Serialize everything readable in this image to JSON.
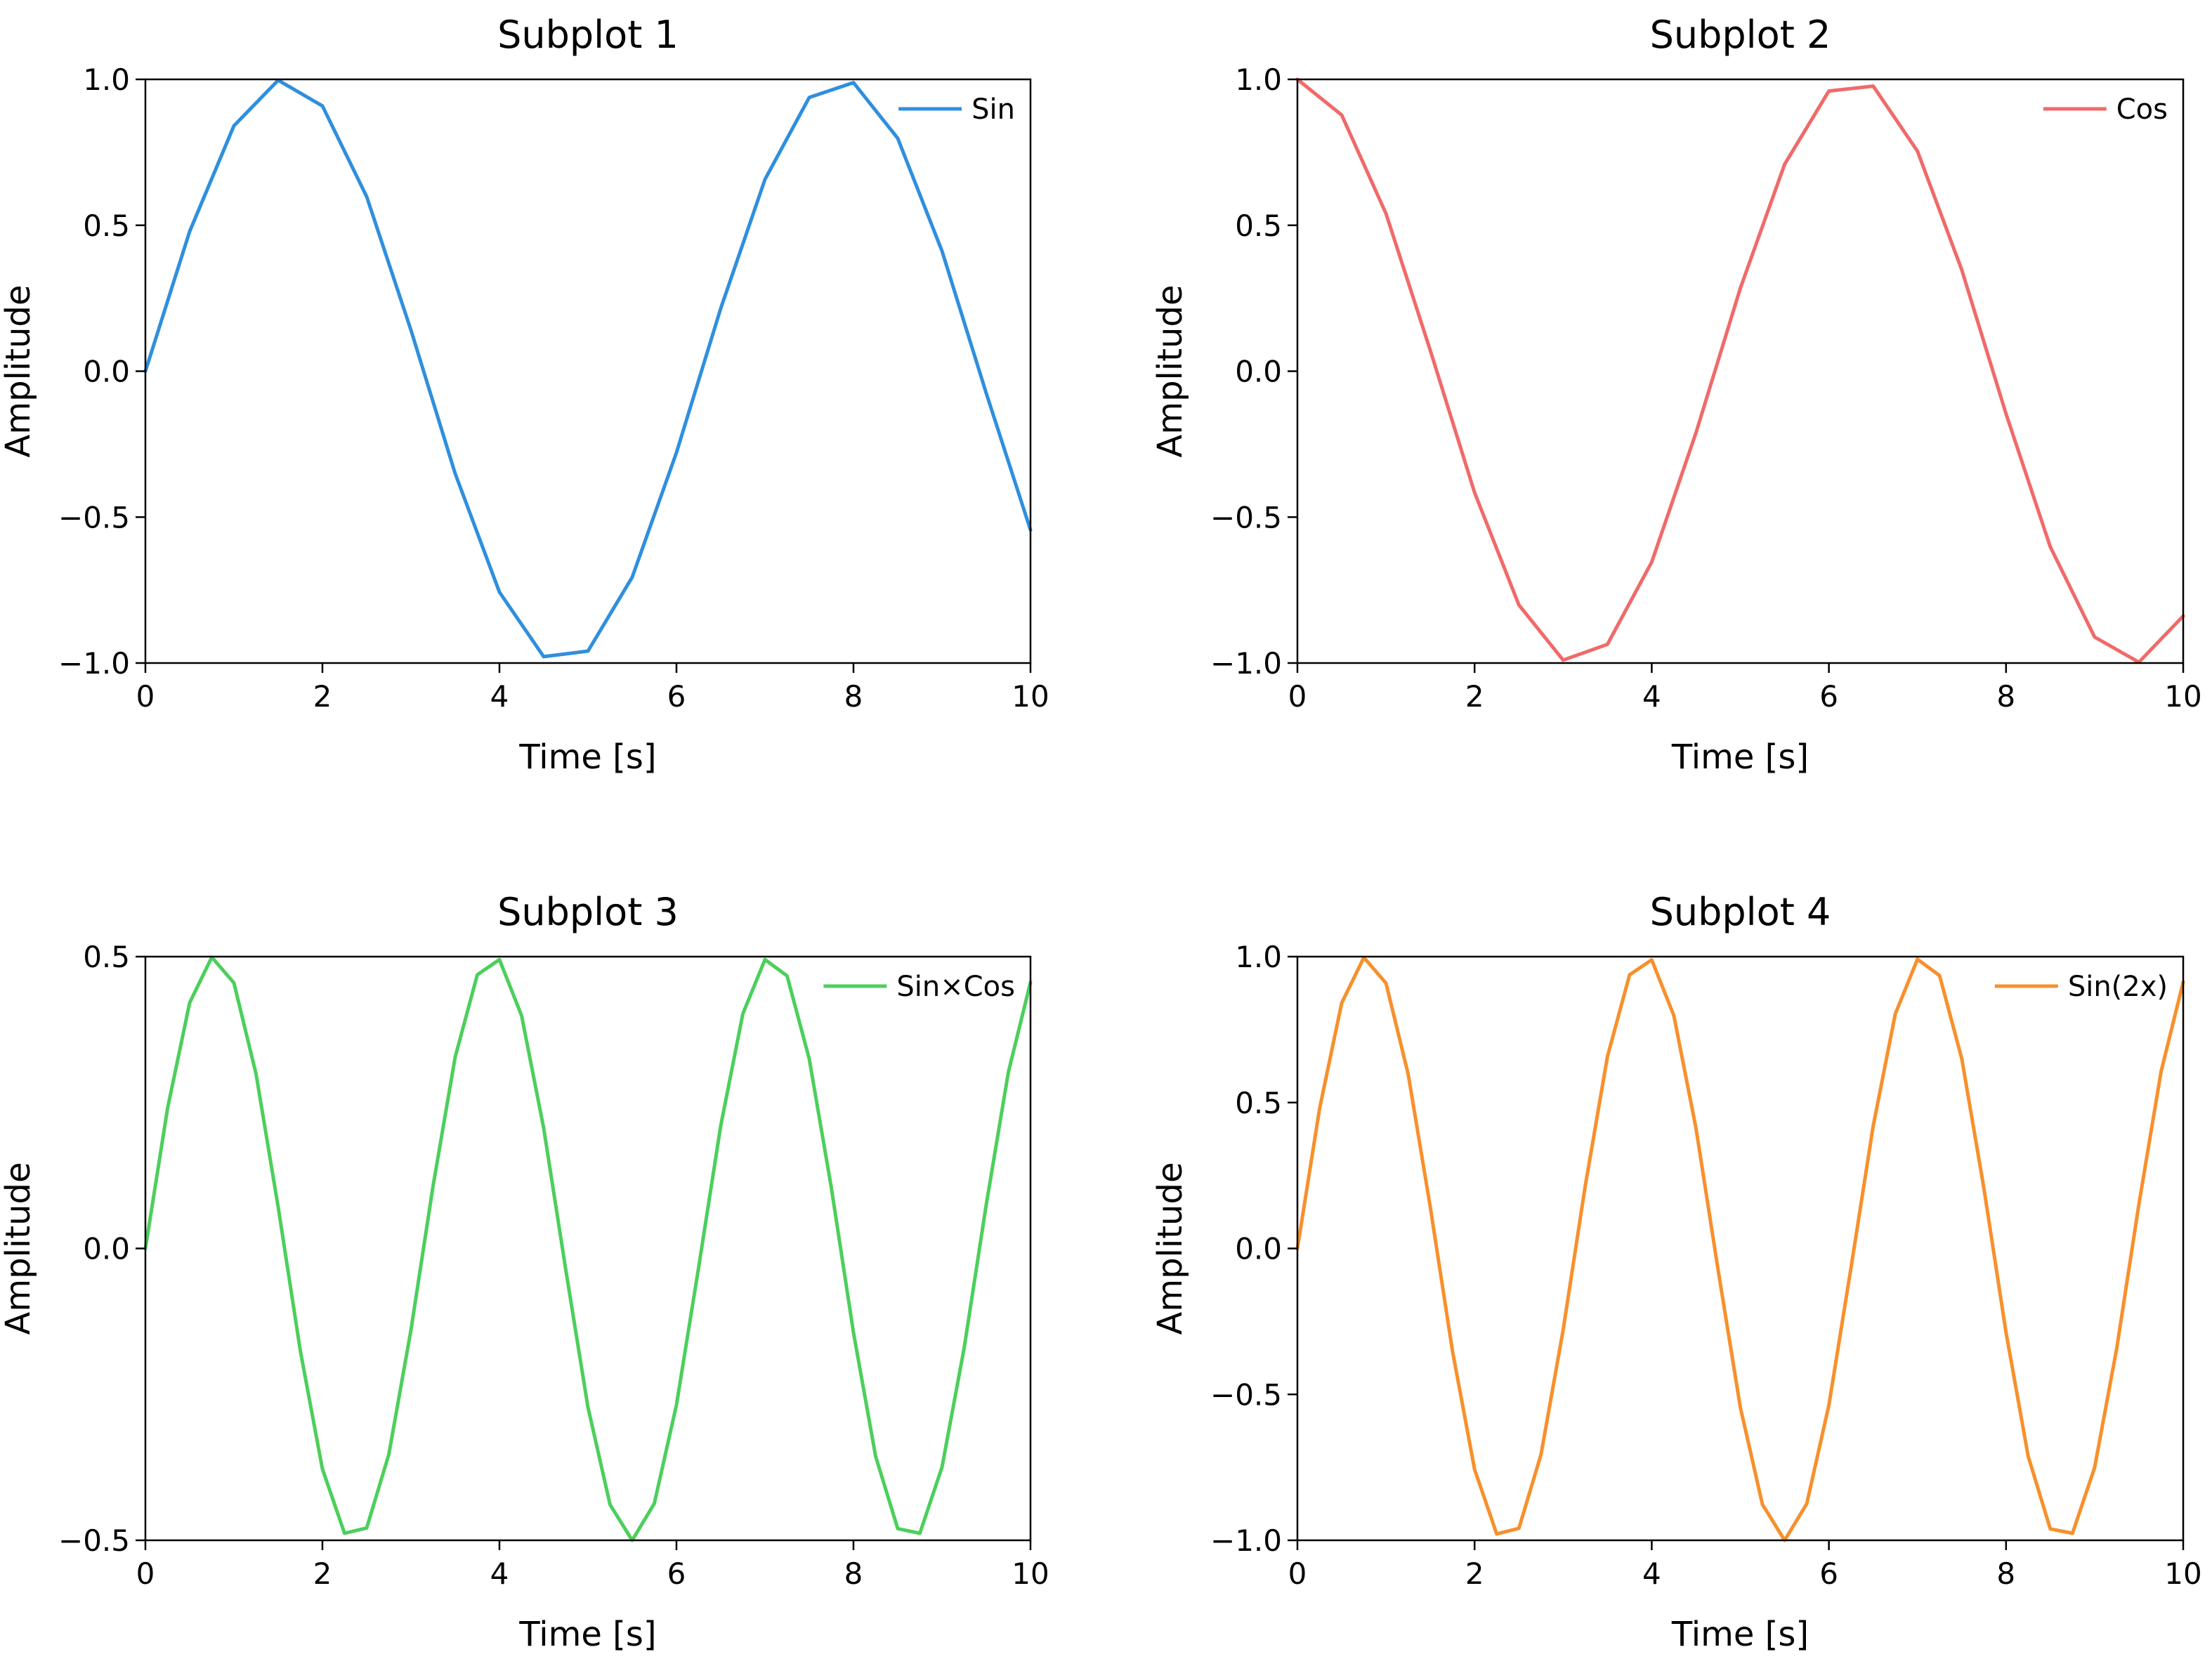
{
  "chart_data": [
    {
      "type": "line",
      "title": "Subplot 1",
      "xlabel": "Time [s]",
      "ylabel": "Amplitude",
      "xlim": [
        0,
        10
      ],
      "ylim": [
        -1.0,
        1.0
      ],
      "xticks": [
        0,
        2,
        4,
        6,
        8,
        10
      ],
      "xtick_labels": [
        "0",
        "2",
        "4",
        "6",
        "8",
        "10"
      ],
      "yticks": [
        -1.0,
        -0.5,
        0.0,
        0.5,
        1.0
      ],
      "ytick_labels": [
        "−1.0",
        "−0.5",
        "0.0",
        "0.5",
        "1.0"
      ],
      "grid": false,
      "legend_position": "top-right",
      "series": [
        {
          "name": "Sin",
          "color": "#2f8fdd",
          "x": [
            0,
            0.5,
            1,
            1.5,
            2,
            2.5,
            3,
            3.5,
            4,
            4.5,
            5,
            5.5,
            6,
            6.5,
            7,
            7.5,
            8,
            8.5,
            9,
            9.5,
            10
          ],
          "y": [
            0.0,
            0.479,
            0.841,
            0.997,
            0.909,
            0.598,
            0.141,
            -0.351,
            -0.757,
            -0.978,
            -0.959,
            -0.706,
            -0.279,
            0.215,
            0.657,
            0.938,
            0.989,
            0.798,
            0.412,
            -0.075,
            -0.544
          ]
        }
      ]
    },
    {
      "type": "line",
      "title": "Subplot 2",
      "xlabel": "Time [s]",
      "ylabel": "Amplitude",
      "xlim": [
        0,
        10
      ],
      "ylim": [
        -1.0,
        1.0
      ],
      "xticks": [
        0,
        2,
        4,
        6,
        8,
        10
      ],
      "xtick_labels": [
        "0",
        "2",
        "4",
        "6",
        "8",
        "10"
      ],
      "yticks": [
        -1.0,
        -0.5,
        0.0,
        0.5,
        1.0
      ],
      "ytick_labels": [
        "−1.0",
        "−0.5",
        "0.0",
        "0.5",
        "1.0"
      ],
      "grid": false,
      "legend_position": "top-right",
      "series": [
        {
          "name": "Cos",
          "color": "#f06a6a",
          "x": [
            0,
            0.5,
            1,
            1.5,
            2,
            2.5,
            3,
            3.5,
            4,
            4.5,
            5,
            5.5,
            6,
            6.5,
            7,
            7.5,
            8,
            8.5,
            9,
            9.5,
            10
          ],
          "y": [
            1.0,
            0.878,
            0.54,
            0.071,
            -0.416,
            -0.801,
            -0.99,
            -0.936,
            -0.654,
            -0.211,
            0.284,
            0.709,
            0.96,
            0.977,
            0.754,
            0.347,
            -0.146,
            -0.602,
            -0.911,
            -0.997,
            -0.839
          ]
        }
      ]
    },
    {
      "type": "line",
      "title": "Subplot 3",
      "xlabel": "Time [s]",
      "ylabel": "Amplitude",
      "xlim": [
        0,
        10
      ],
      "ylim": [
        -0.5,
        0.5
      ],
      "xticks": [
        0,
        2,
        4,
        6,
        8,
        10
      ],
      "xtick_labels": [
        "0",
        "2",
        "4",
        "6",
        "8",
        "10"
      ],
      "yticks": [
        -0.5,
        0.0,
        0.5
      ],
      "ytick_labels": [
        "−0.5",
        "0.0",
        "0.5"
      ],
      "grid": false,
      "legend_position": "top-right",
      "series": [
        {
          "name": "Sin×Cos",
          "color": "#4ccf5c",
          "x": [
            0,
            0.25,
            0.5,
            0.75,
            1,
            1.25,
            1.5,
            1.75,
            2,
            2.25,
            2.5,
            2.75,
            3,
            3.25,
            3.5,
            3.75,
            4,
            4.25,
            4.5,
            4.75,
            5,
            5.25,
            5.5,
            5.75,
            6,
            6.25,
            6.5,
            6.75,
            7,
            7.25,
            7.5,
            7.75,
            8,
            8.25,
            8.5,
            8.75,
            9,
            9.25,
            9.5,
            9.75,
            10
          ],
          "y": [
            0.0,
            0.24,
            0.421,
            0.499,
            0.455,
            0.299,
            0.071,
            -0.175,
            -0.378,
            -0.488,
            -0.479,
            -0.353,
            -0.14,
            0.107,
            0.328,
            0.469,
            0.495,
            0.399,
            0.206,
            -0.037,
            -0.272,
            -0.439,
            -0.5,
            -0.437,
            -0.268,
            -0.033,
            0.21,
            0.402,
            0.495,
            0.467,
            0.325,
            0.104,
            -0.144,
            -0.356,
            -0.48,
            -0.488,
            -0.375,
            -0.171,
            0.075,
            0.302,
            0.456
          ]
        }
      ]
    },
    {
      "type": "line",
      "title": "Subplot 4",
      "xlabel": "Time [s]",
      "ylabel": "Amplitude",
      "xlim": [
        0,
        10
      ],
      "ylim": [
        -1.0,
        1.0
      ],
      "xticks": [
        0,
        2,
        4,
        6,
        8,
        10
      ],
      "xtick_labels": [
        "0",
        "2",
        "4",
        "6",
        "8",
        "10"
      ],
      "yticks": [
        -1.0,
        -0.5,
        0.0,
        0.5,
        1.0
      ],
      "ytick_labels": [
        "−1.0",
        "−0.5",
        "0.0",
        "0.5",
        "1.0"
      ],
      "grid": false,
      "legend_position": "top-right",
      "series": [
        {
          "name": "Sin(2x)",
          "color": "#f7902c",
          "x": [
            0,
            0.25,
            0.5,
            0.75,
            1,
            1.25,
            1.5,
            1.75,
            2,
            2.25,
            2.5,
            2.75,
            3,
            3.25,
            3.5,
            3.75,
            4,
            4.25,
            4.5,
            4.75,
            5,
            5.25,
            5.5,
            5.75,
            6,
            6.25,
            6.5,
            6.75,
            7,
            7.25,
            7.5,
            7.75,
            8,
            8.25,
            8.5,
            8.75,
            9,
            9.25,
            9.5,
            9.75,
            10
          ],
          "y": [
            0.0,
            0.479,
            0.841,
            0.997,
            0.909,
            0.598,
            0.141,
            -0.351,
            -0.757,
            -0.978,
            -0.959,
            -0.706,
            -0.279,
            0.215,
            0.657,
            0.938,
            0.989,
            0.798,
            0.412,
            -0.075,
            -0.544,
            -0.877,
            -1.0,
            -0.875,
            -0.537,
            -0.066,
            0.42,
            0.804,
            0.991,
            0.935,
            0.65,
            0.206,
            -0.288,
            -0.712,
            -0.961,
            -0.976,
            -0.751,
            -0.342,
            0.151,
            0.606,
            0.913
          ]
        }
      ]
    }
  ]
}
